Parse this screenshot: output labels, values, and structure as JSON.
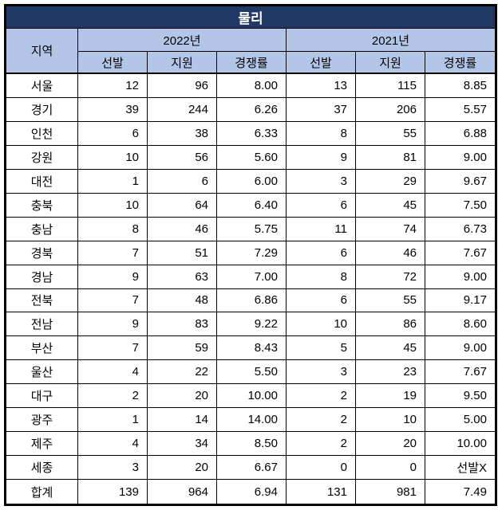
{
  "title": "물리",
  "colors": {
    "title_bg": "#1F3864",
    "title_fg": "#FFFFFF",
    "header_bg": "#B4C6E7",
    "border": "#000000"
  },
  "headers": {
    "region": "지역",
    "years": [
      "2022년",
      "2021년"
    ],
    "sub": [
      "선발",
      "지원",
      "경쟁률"
    ]
  },
  "rows": [
    {
      "region": "서울",
      "values": [
        "12",
        "96",
        "8.00",
        "13",
        "115",
        "8.85"
      ]
    },
    {
      "region": "경기",
      "values": [
        "39",
        "244",
        "6.26",
        "37",
        "206",
        "5.57"
      ]
    },
    {
      "region": "인천",
      "values": [
        "6",
        "38",
        "6.33",
        "8",
        "55",
        "6.88"
      ]
    },
    {
      "region": "강원",
      "values": [
        "10",
        "56",
        "5.60",
        "9",
        "81",
        "9.00"
      ]
    },
    {
      "region": "대전",
      "values": [
        "1",
        "6",
        "6.00",
        "3",
        "29",
        "9.67"
      ]
    },
    {
      "region": "충북",
      "values": [
        "10",
        "64",
        "6.40",
        "6",
        "45",
        "7.50"
      ]
    },
    {
      "region": "충남",
      "values": [
        "8",
        "46",
        "5.75",
        "11",
        "74",
        "6.73"
      ]
    },
    {
      "region": "경북",
      "values": [
        "7",
        "51",
        "7.29",
        "6",
        "46",
        "7.67"
      ]
    },
    {
      "region": "경남",
      "values": [
        "9",
        "63",
        "7.00",
        "8",
        "72",
        "9.00"
      ]
    },
    {
      "region": "전북",
      "values": [
        "7",
        "48",
        "6.86",
        "6",
        "55",
        "9.17"
      ]
    },
    {
      "region": "전남",
      "values": [
        "9",
        "83",
        "9.22",
        "10",
        "86",
        "8.60"
      ]
    },
    {
      "region": "부산",
      "values": [
        "7",
        "59",
        "8.43",
        "5",
        "45",
        "9.00"
      ]
    },
    {
      "region": "울산",
      "values": [
        "4",
        "22",
        "5.50",
        "3",
        "23",
        "7.67"
      ]
    },
    {
      "region": "대구",
      "values": [
        "2",
        "20",
        "10.00",
        "2",
        "19",
        "9.50"
      ]
    },
    {
      "region": "광주",
      "values": [
        "1",
        "14",
        "14.00",
        "2",
        "10",
        "5.00"
      ]
    },
    {
      "region": "제주",
      "values": [
        "4",
        "34",
        "8.50",
        "2",
        "20",
        "10.00"
      ]
    },
    {
      "region": "세종",
      "values": [
        "3",
        "20",
        "6.67",
        "0",
        "0",
        "선발X"
      ]
    },
    {
      "region": "합계",
      "values": [
        "139",
        "964",
        "6.94",
        "131",
        "981",
        "7.49"
      ]
    }
  ],
  "chart_data": {
    "type": "table",
    "title": "물리",
    "columns": [
      "지역",
      "2022년 선발",
      "2022년 지원",
      "2022년 경쟁률",
      "2021년 선발",
      "2021년 지원",
      "2021년 경쟁률"
    ],
    "rows": [
      [
        "서울",
        12,
        96,
        8.0,
        13,
        115,
        8.85
      ],
      [
        "경기",
        39,
        244,
        6.26,
        37,
        206,
        5.57
      ],
      [
        "인천",
        6,
        38,
        6.33,
        8,
        55,
        6.88
      ],
      [
        "강원",
        10,
        56,
        5.6,
        9,
        81,
        9.0
      ],
      [
        "대전",
        1,
        6,
        6.0,
        3,
        29,
        9.67
      ],
      [
        "충북",
        10,
        64,
        6.4,
        6,
        45,
        7.5
      ],
      [
        "충남",
        8,
        46,
        5.75,
        11,
        74,
        6.73
      ],
      [
        "경북",
        7,
        51,
        7.29,
        6,
        46,
        7.67
      ],
      [
        "경남",
        9,
        63,
        7.0,
        8,
        72,
        9.0
      ],
      [
        "전북",
        7,
        48,
        6.86,
        6,
        55,
        9.17
      ],
      [
        "전남",
        9,
        83,
        9.22,
        10,
        86,
        8.6
      ],
      [
        "부산",
        7,
        59,
        8.43,
        5,
        45,
        9.0
      ],
      [
        "울산",
        4,
        22,
        5.5,
        3,
        23,
        7.67
      ],
      [
        "대구",
        2,
        20,
        10.0,
        2,
        19,
        9.5
      ],
      [
        "광주",
        1,
        14,
        14.0,
        2,
        10,
        5.0
      ],
      [
        "제주",
        4,
        34,
        8.5,
        2,
        20,
        10.0
      ],
      [
        "세종",
        3,
        20,
        6.67,
        0,
        0,
        "선발X"
      ],
      [
        "합계",
        139,
        964,
        6.94,
        131,
        981,
        7.49
      ]
    ]
  }
}
